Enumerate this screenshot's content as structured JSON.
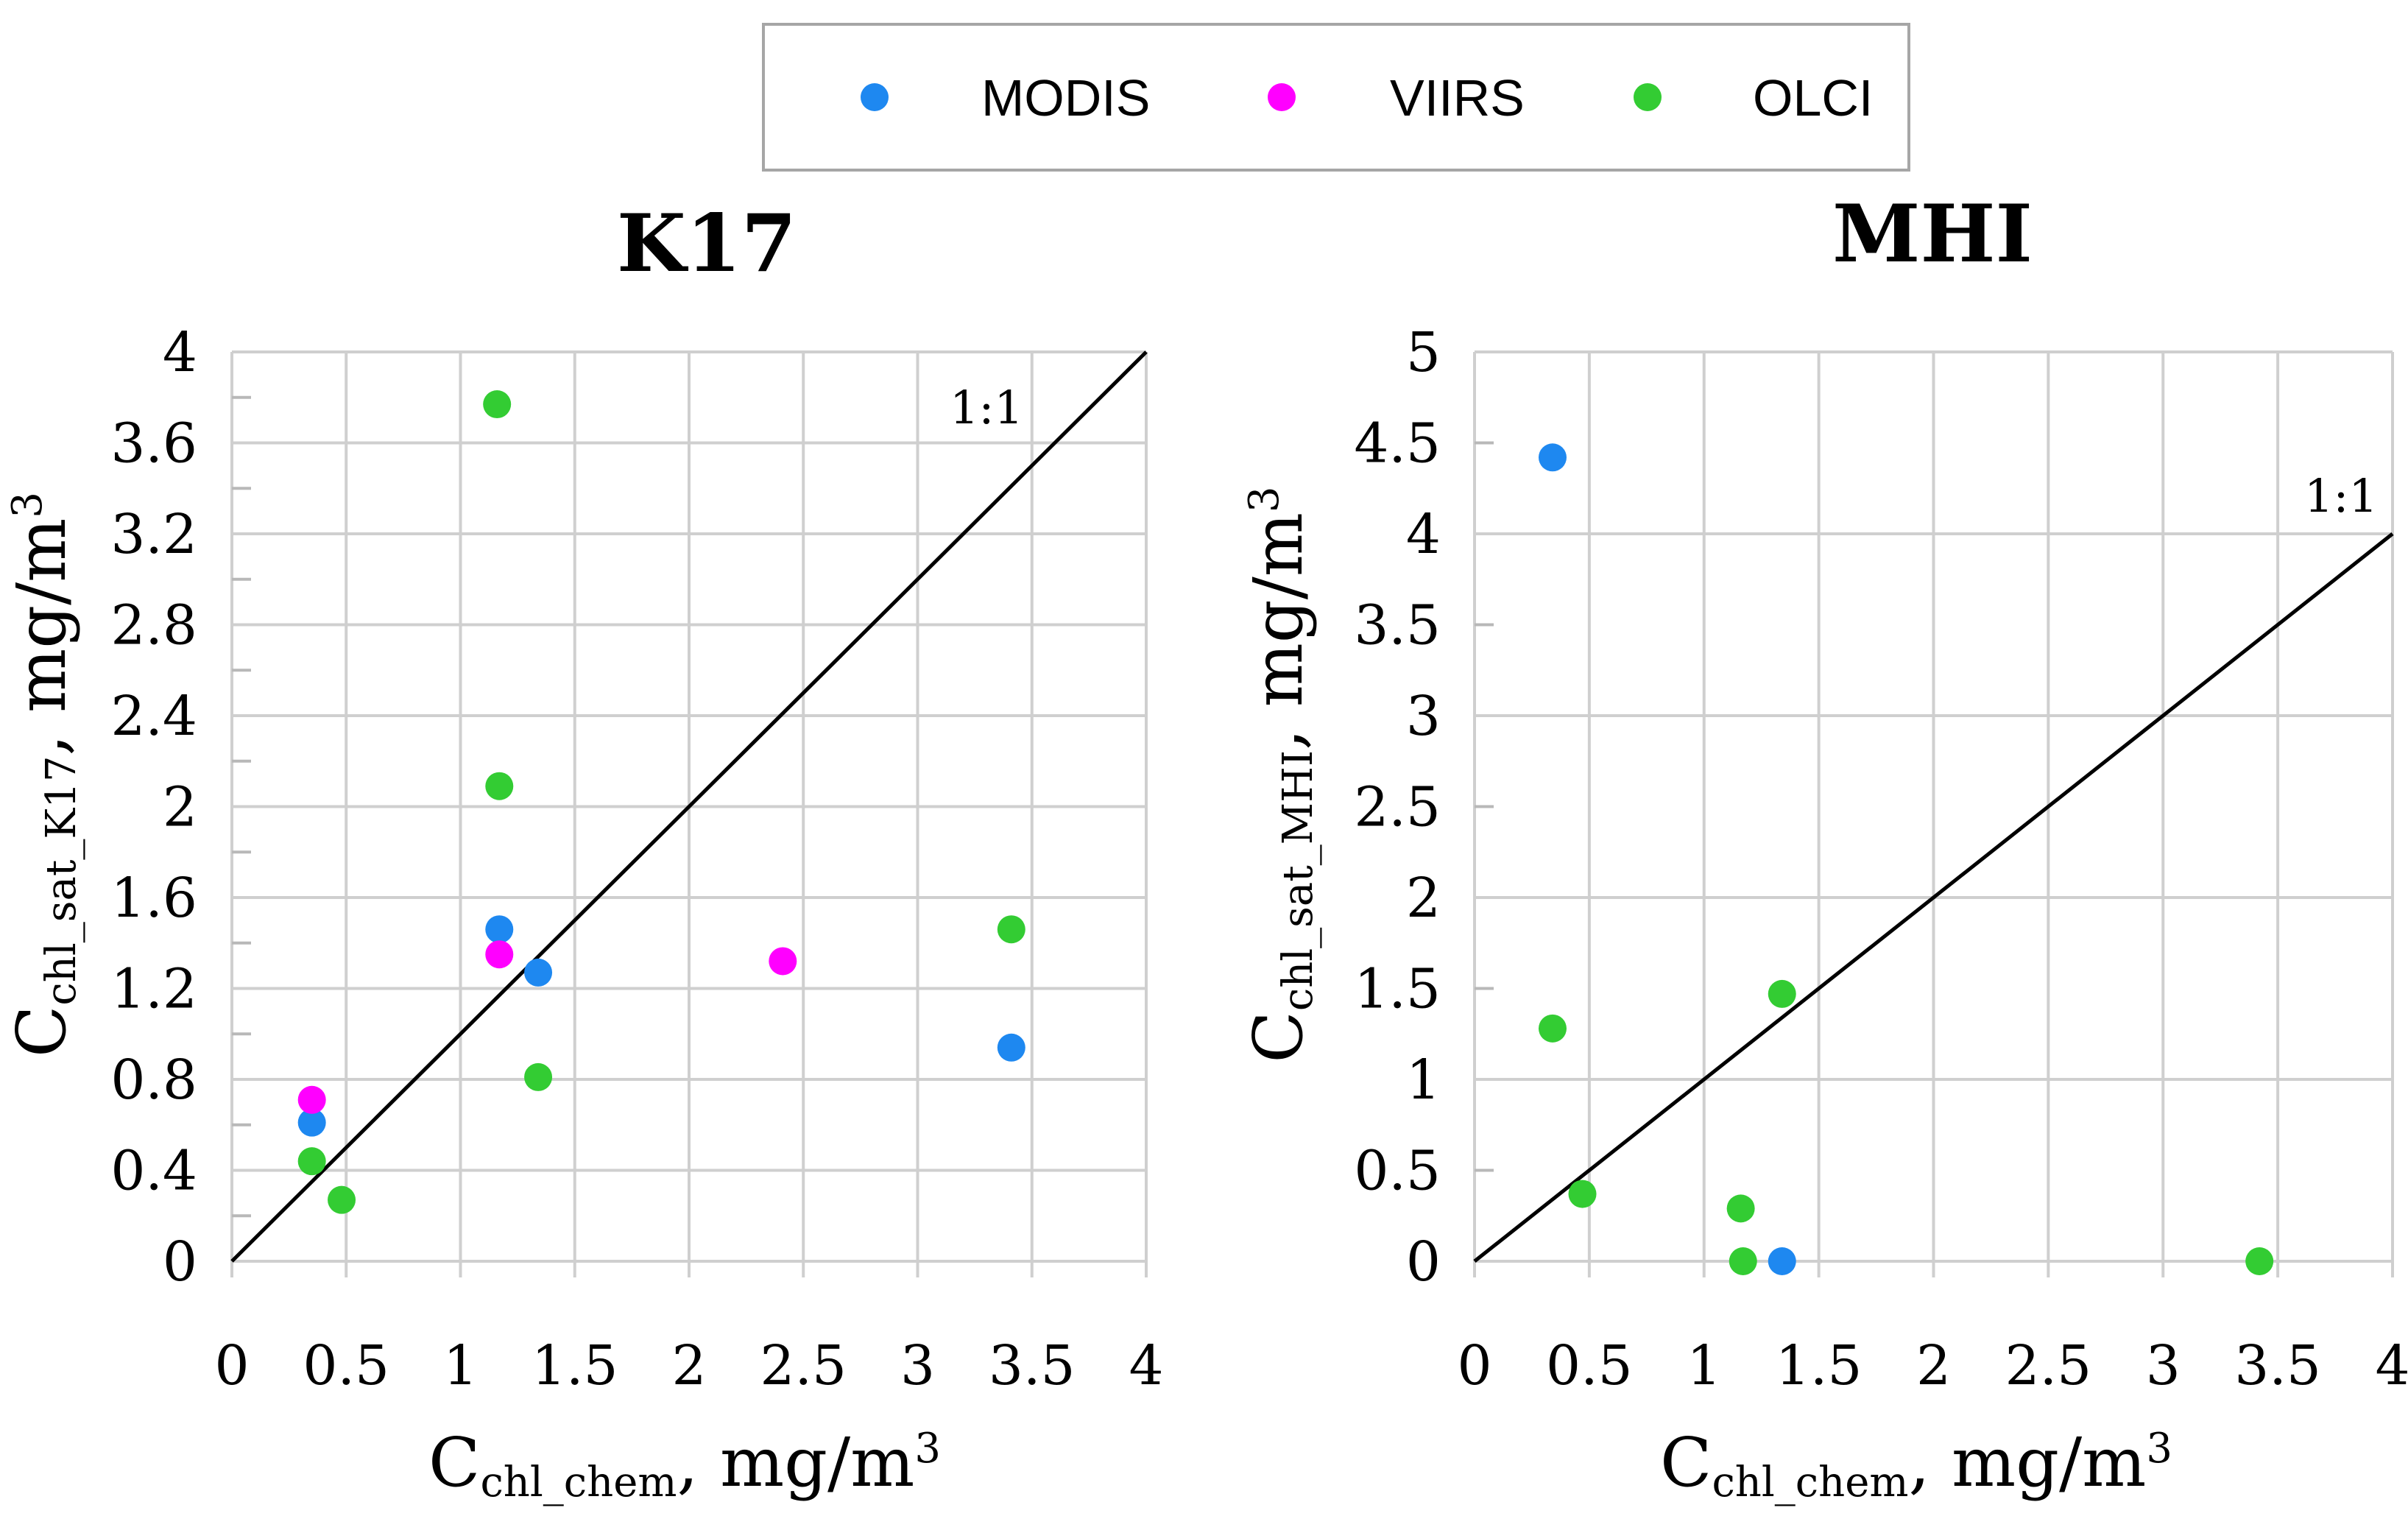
{
  "legend": {
    "entries": [
      {
        "name": "MODIS",
        "color": "#1e88f0"
      },
      {
        "name": "VIIRS",
        "color": "#ff00ff"
      },
      {
        "name": "OLCI",
        "color": "#33cc33"
      }
    ]
  },
  "chart_data": [
    {
      "type": "scatter",
      "title": "K17",
      "xlabel": {
        "main": "C",
        "sub": "chl_chem",
        "rest": ", mg/m",
        "sup": "3"
      },
      "ylabel": {
        "main": "C",
        "sub": "chl_sat_K17",
        "rest": ", mg/m",
        "sup": "3"
      },
      "xlim": [
        0,
        4
      ],
      "ylim": [
        0,
        4
      ],
      "xticks": [
        "0",
        "0.5",
        "1",
        "1.5",
        "2",
        "2.5",
        "3",
        "3.5",
        "4"
      ],
      "yticks": [
        "0",
        "0.4",
        "0.8",
        "1.2",
        "1.6",
        "2",
        "2.4",
        "2.8",
        "3.2",
        "3.6",
        "4"
      ],
      "xmajor": [
        0,
        0.5,
        1,
        1.5,
        2,
        2.5,
        3,
        3.5,
        4
      ],
      "ymajor": [
        0,
        0.4,
        0.8,
        1.2,
        1.6,
        2,
        2.4,
        2.8,
        3.2,
        3.6,
        4
      ],
      "yminor": [
        0.2,
        0.6,
        1.0,
        1.4,
        1.8,
        2.2,
        2.6,
        3.0,
        3.4,
        3.8
      ],
      "reference_line_label": "1:1",
      "series": [
        {
          "name": "MODIS",
          "points": [
            [
              0.35,
              0.61
            ],
            [
              1.17,
              1.46
            ],
            [
              1.34,
              1.27
            ],
            [
              3.41,
              0.94
            ]
          ]
        },
        {
          "name": "VIIRS",
          "points": [
            [
              0.35,
              0.71
            ],
            [
              1.17,
              1.35
            ],
            [
              2.41,
              1.32
            ]
          ]
        },
        {
          "name": "OLCI",
          "points": [
            [
              0.35,
              0.44
            ],
            [
              0.48,
              0.27
            ],
            [
              1.16,
              3.77
            ],
            [
              1.17,
              2.09
            ],
            [
              1.34,
              0.81
            ],
            [
              3.41,
              1.46
            ]
          ]
        }
      ]
    },
    {
      "type": "scatter",
      "title": "MHI",
      "xlabel": {
        "main": "C",
        "sub": "chl_chem",
        "rest": ", mg/m",
        "sup": "3"
      },
      "ylabel": {
        "main": "C",
        "sub": "chl_sat_MHI",
        "rest": ", mg/m",
        "sup": "3"
      },
      "xlim": [
        0,
        4
      ],
      "ylim": [
        0,
        5
      ],
      "xticks": [
        "0",
        "0.5",
        "1",
        "1.5",
        "2",
        "2.5",
        "3",
        "3.5",
        "4"
      ],
      "yticks": [
        "0",
        "0.5",
        "1",
        "1.5",
        "2",
        "2.5",
        "3",
        "3.5",
        "4",
        "4.5",
        "5"
      ],
      "xmajor": [
        0,
        0.5,
        1,
        1.5,
        2,
        2.5,
        3,
        3.5,
        4
      ],
      "ymajor": [
        0,
        1,
        2,
        3,
        4,
        5
      ],
      "yminor": [
        0.5,
        1.5,
        2.5,
        3.5,
        4.5
      ],
      "reference_line_label": "1:1",
      "series": [
        {
          "name": "MODIS",
          "points": [
            [
              0.34,
              4.42
            ],
            [
              1.34,
              0.0
            ]
          ]
        },
        {
          "name": "VIIRS",
          "points": []
        },
        {
          "name": "OLCI",
          "points": [
            [
              0.34,
              1.28
            ],
            [
              0.47,
              0.37
            ],
            [
              1.16,
              0.29
            ],
            [
              1.17,
              0.0
            ],
            [
              1.34,
              1.47
            ],
            [
              3.42,
              0.0
            ]
          ]
        }
      ]
    }
  ]
}
